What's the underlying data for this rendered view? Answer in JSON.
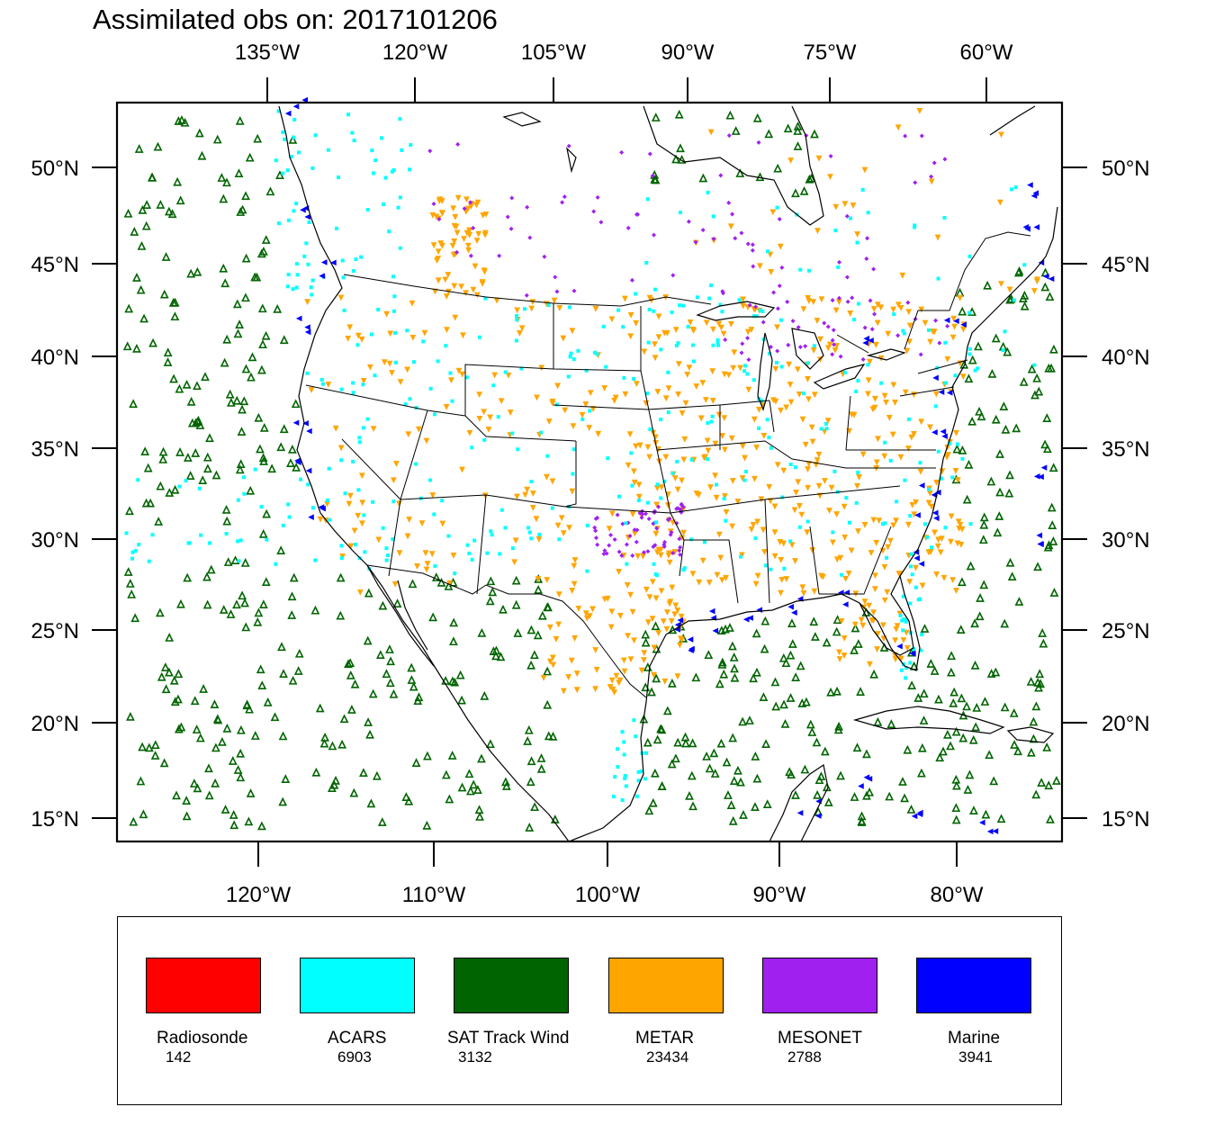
{
  "title": "Assimilated obs on: 2017101206",
  "top_axis_labels": [
    "135°W",
    "120°W",
    "105°W",
    "90°W",
    "75°W",
    "60°W"
  ],
  "bottom_axis_labels": [
    "120°W",
    "110°W",
    "100°W",
    "90°W",
    "80°W"
  ],
  "lat_labels": [
    "50°N",
    "45°N",
    "40°N",
    "35°N",
    "30°N",
    "25°N",
    "20°N",
    "15°N"
  ],
  "legend": [
    {
      "label": "Radiosonde",
      "count": "142",
      "color": "#ff0000"
    },
    {
      "label": "ACARS",
      "count": "6903",
      "color": "#00ffff"
    },
    {
      "label": "SAT Track Wind",
      "count": "3132",
      "color": "#006400"
    },
    {
      "label": "METAR",
      "count": "23434",
      "color": "#ffa500"
    },
    {
      "label": "MESONET",
      "count": "2788",
      "color": "#a020f0"
    },
    {
      "label": "Marine",
      "count": "3941",
      "color": "#0000ff"
    }
  ]
}
